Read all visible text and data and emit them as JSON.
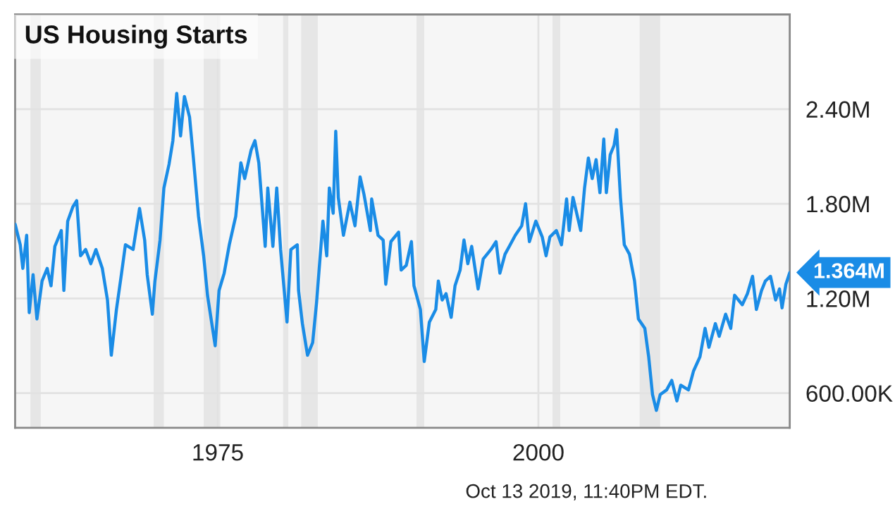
{
  "chart_data": {
    "type": "line",
    "title": "US Housing Starts",
    "x": [
      1959.2,
      1959.6,
      1959.8,
      1960.1,
      1960.3,
      1960.6,
      1960.9,
      1961.3,
      1961.7,
      1962.0,
      1962.3,
      1962.8,
      1963.0,
      1963.3,
      1963.7,
      1964.0,
      1964.3,
      1964.7,
      1965.1,
      1965.5,
      1966.0,
      1966.4,
      1966.7,
      1967.1,
      1967.5,
      1967.8,
      1968.4,
      1968.9,
      1969.3,
      1969.5,
      1969.9,
      1970.1,
      1970.5,
      1970.8,
      1971.2,
      1971.5,
      1971.8,
      1972.1,
      1972.4,
      1972.8,
      1973.1,
      1973.5,
      1973.9,
      1974.2,
      1974.8,
      1975.1,
      1975.5,
      1975.9,
      1976.4,
      1976.8,
      1977.1,
      1977.6,
      1977.9,
      1978.2,
      1978.7,
      1978.9,
      1979.3,
      1979.6,
      1979.9,
      1980.4,
      1980.7,
      1981.2,
      1981.3,
      1981.6,
      1982.0,
      1982.4,
      1982.7,
      1983.2,
      1983.5,
      1983.7,
      1984.0,
      1984.2,
      1984.4,
      1984.8,
      1985.3,
      1985.7,
      1986.1,
      1986.4,
      1986.9,
      1987.0,
      1987.5,
      1987.9,
      1988.1,
      1988.5,
      1989.1,
      1989.3,
      1989.7,
      1990.1,
      1990.3,
      1990.8,
      1991.1,
      1991.5,
      1992.0,
      1992.2,
      1992.5,
      1992.8,
      1993.2,
      1993.5,
      1993.9,
      1994.2,
      1994.5,
      1994.8,
      1995.3,
      1995.7,
      1996.3,
      1996.7,
      1997.0,
      1997.4,
      1997.8,
      1998.2,
      1998.7,
      1999.0,
      1999.3,
      1999.8,
      2000.3,
      2000.6,
      2000.9,
      2001.4,
      2001.8,
      2002.2,
      2002.4,
      2002.7,
      2003.3,
      2003.6,
      2003.9,
      2004.2,
      2004.5,
      2004.8,
      2005.1,
      2005.3,
      2005.6,
      2005.9,
      2006.1,
      2006.4,
      2006.7,
      2007.1,
      2007.5,
      2007.8,
      2008.3,
      2008.6,
      2008.9,
      2009.2,
      2009.5,
      2010.0,
      2010.4,
      2010.8,
      2011.1,
      2011.7,
      2012.1,
      2012.6,
      2013.0,
      2013.3,
      2013.8,
      2014.1,
      2014.6,
      2015.0,
      2015.3,
      2015.9,
      2016.3,
      2016.7,
      2017.0,
      2017.4,
      2017.7,
      2018.1,
      2018.5,
      2018.8,
      2019.0,
      2019.3,
      2019.6
    ],
    "series": [
      {
        "color": "#1a8ce6",
        "values": [
          1670000,
          1540000,
          1390000,
          1600000,
          1110000,
          1350000,
          1070000,
          1310000,
          1390000,
          1280000,
          1530000,
          1630000,
          1250000,
          1690000,
          1780000,
          1820000,
          1470000,
          1510000,
          1420000,
          1510000,
          1390000,
          1190000,
          840000,
          1130000,
          1360000,
          1540000,
          1510000,
          1770000,
          1570000,
          1350000,
          1100000,
          1310000,
          1570000,
          1900000,
          2050000,
          2200000,
          2500000,
          2230000,
          2480000,
          2350000,
          2090000,
          1720000,
          1470000,
          1220000,
          900000,
          1250000,
          1360000,
          1540000,
          1720000,
          2060000,
          1960000,
          2140000,
          2200000,
          2060000,
          1530000,
          1900000,
          1530000,
          1900000,
          1510000,
          1050000,
          1510000,
          1540000,
          1250000,
          1040000,
          840000,
          920000,
          1170000,
          1690000,
          1470000,
          1900000,
          1740000,
          2260000,
          1840000,
          1600000,
          1810000,
          1660000,
          1970000,
          1860000,
          1630000,
          1830000,
          1600000,
          1570000,
          1290000,
          1560000,
          1620000,
          1380000,
          1410000,
          1560000,
          1280000,
          1130000,
          800000,
          1050000,
          1130000,
          1310000,
          1190000,
          1230000,
          1080000,
          1280000,
          1380000,
          1570000,
          1420000,
          1530000,
          1260000,
          1450000,
          1510000,
          1560000,
          1360000,
          1480000,
          1540000,
          1600000,
          1660000,
          1800000,
          1560000,
          1690000,
          1590000,
          1470000,
          1590000,
          1630000,
          1540000,
          1830000,
          1630000,
          1840000,
          1630000,
          1900000,
          2090000,
          1960000,
          2080000,
          1870000,
          2210000,
          1870000,
          2110000,
          2170000,
          2270000,
          1840000,
          1540000,
          1480000,
          1310000,
          1070000,
          1010000,
          830000,
          590000,
          490000,
          590000,
          620000,
          680000,
          550000,
          650000,
          620000,
          740000,
          830000,
          1010000,
          890000,
          1040000,
          960000,
          1100000,
          1010000,
          1220000,
          1160000,
          1230000,
          1340000,
          1130000,
          1250000,
          1310000,
          1340000,
          1190000,
          1260000,
          1140000,
          1290000,
          1364000
        ]
      }
    ],
    "xlim": [
      1959.2,
      2019.6
    ],
    "xticks": [
      1975,
      2000
    ],
    "ylim": [
      380000,
      3000000
    ],
    "yticks": [
      {
        "value": 600000,
        "label": "600.00K"
      },
      {
        "value": 1200000,
        "label": "1.20M"
      },
      {
        "value": 1800000,
        "label": "1.80M"
      },
      {
        "value": 2400000,
        "label": "2.40M"
      }
    ],
    "grid": true,
    "bands": [
      {
        "axis": "x",
        "from": 1960.4,
        "to": 1961.2,
        "color": "#e6e6e6"
      },
      {
        "axis": "x",
        "from": 1970.0,
        "to": 1970.8,
        "color": "#e6e6e6"
      },
      {
        "axis": "x",
        "from": 1973.9,
        "to": 1975.2,
        "color": "#e6e6e6"
      },
      {
        "axis": "x",
        "from": 1980.1,
        "to": 1980.5,
        "color": "#e6e6e6"
      },
      {
        "axis": "x",
        "from": 1981.5,
        "to": 1982.8,
        "color": "#e6e6e6"
      },
      {
        "axis": "x",
        "from": 1990.5,
        "to": 1991.1,
        "color": "#e6e6e6"
      },
      {
        "axis": "x",
        "from": 2001.1,
        "to": 2001.7,
        "color": "#e6e6e6"
      },
      {
        "axis": "x",
        "from": 2007.9,
        "to": 2009.5,
        "color": "#e6e6e6"
      }
    ],
    "annotations": [
      {
        "text": "1.364M",
        "x": 2019.6,
        "y": 1364000
      },
      "Oct 13 2019, 11:40PM EDT."
    ]
  }
}
